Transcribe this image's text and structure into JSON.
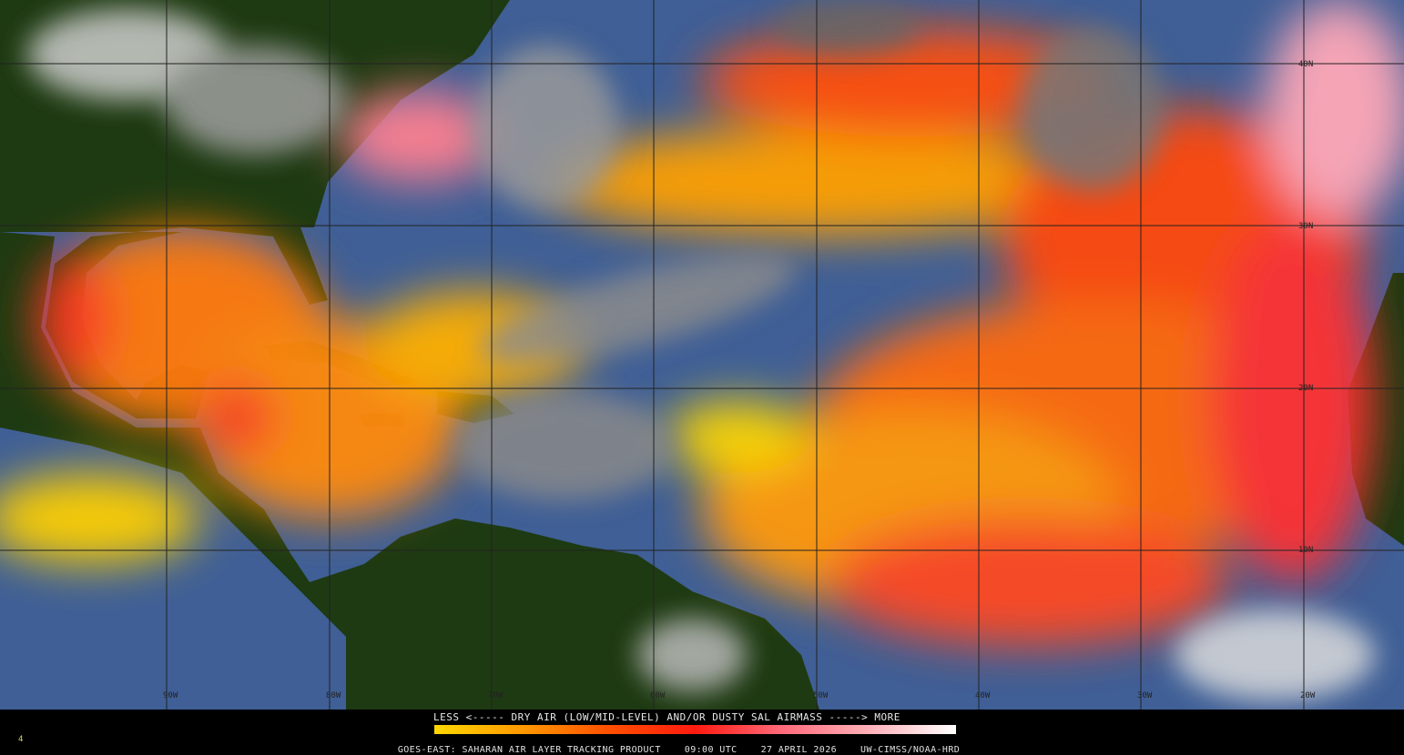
{
  "legend": {
    "title": "LESS <----- DRY AIR (LOW/MID-LEVEL) AND/OR DUSTY SAL AIRMASS -----> MORE",
    "colorbar_colors": [
      "#ffd800",
      "#ff9a00",
      "#ff5000",
      "#ff1a10",
      "#ff6a7a",
      "#ffb0b8",
      "#ffffff"
    ]
  },
  "footer": {
    "product": "GOES-EAST: SAHARAN AIR LAYER TRACKING PRODUCT",
    "time": "09:00 UTC",
    "date": "27 APRIL 2026",
    "credit": "UW-CIMSS/NOAA-HRD"
  },
  "frame_number": "4",
  "grid": {
    "longitudes": [
      "90W",
      "80W",
      "70W",
      "60W",
      "50W",
      "40W",
      "30W",
      "20W"
    ],
    "latitudes": [
      "40N",
      "30N",
      "20N",
      "10N"
    ]
  },
  "colors": {
    "land": "#1e3a12",
    "ocean": "#3f5f96",
    "cloud": "#9a9a9a",
    "sal_low": "#ffd800",
    "sal_mid": "#ff7a00",
    "sal_high": "#ff2a1a",
    "sal_max": "#ffb6c0"
  }
}
